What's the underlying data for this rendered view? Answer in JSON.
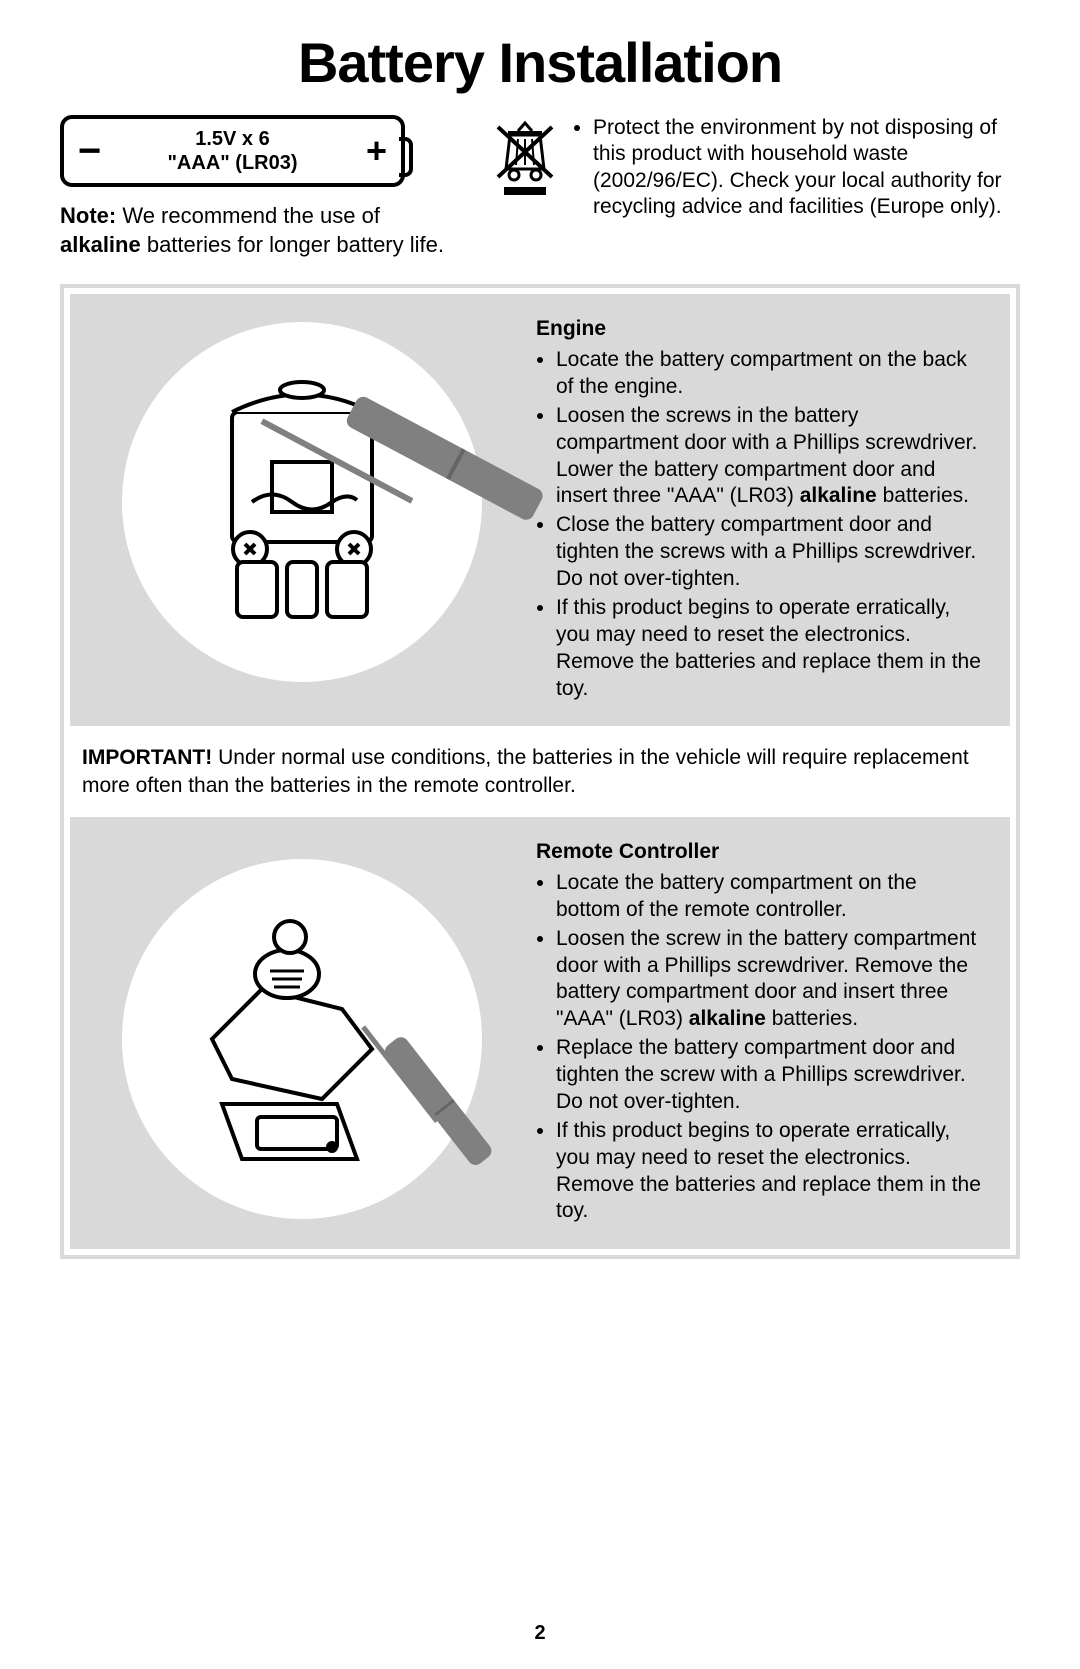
{
  "title": "Battery Installation",
  "battery": {
    "line1": "1.5V x 6",
    "line2": "\"AAA\" (LR03)",
    "minus": "−",
    "plus": "+"
  },
  "note": {
    "label": "Note:",
    "body_before": " We recommend the use of ",
    "bold": "alkaline",
    "body_after": " batteries for longer battery life."
  },
  "environment": {
    "text": "Protect the environment by not disposing of this product with household waste (2002/96/EC). Check your local authority for recycling advice and facilities (Europe only)."
  },
  "engine": {
    "heading": "Engine",
    "items": [
      "Locate the battery compartment on the back of the engine.",
      "Loosen the screws in the battery compartment door with a Phillips screwdriver. Lower the battery compartment door and insert three \"AAA\" (LR03) <b>alkaline</b> batteries.",
      "Close the battery compartment door and tighten the screws with a Phillips screwdriver. Do not over-tighten.",
      "If this product begins to operate erratically, you may need to reset the electronics. Remove the batteries and replace them in the toy."
    ]
  },
  "important": {
    "label": "IMPORTANT!",
    "text": " Under normal use conditions, the batteries in the vehicle will require replacement more often than the batteries in the remote controller."
  },
  "remote": {
    "heading": "Remote Controller",
    "items": [
      "Locate the battery compartment on the bottom of the remote controller.",
      "Loosen the screw in the battery compartment door with a Phillips screwdriver. Remove the battery compartment door and insert three \"AAA\" (LR03) <b>alkaline</b> batteries.",
      "Replace the battery compartment door and tighten the screw with a Phillips screwdriver. Do not over-tighten.",
      "If this product begins to operate erratically, you may need to reset the electronics. Remove the batteries and replace them in the toy."
    ]
  },
  "page_number": "2",
  "colors": {
    "panel_gray": "#d9d9d9",
    "screwdriver_gray": "#808080",
    "text": "#000000",
    "bg": "#ffffff"
  }
}
